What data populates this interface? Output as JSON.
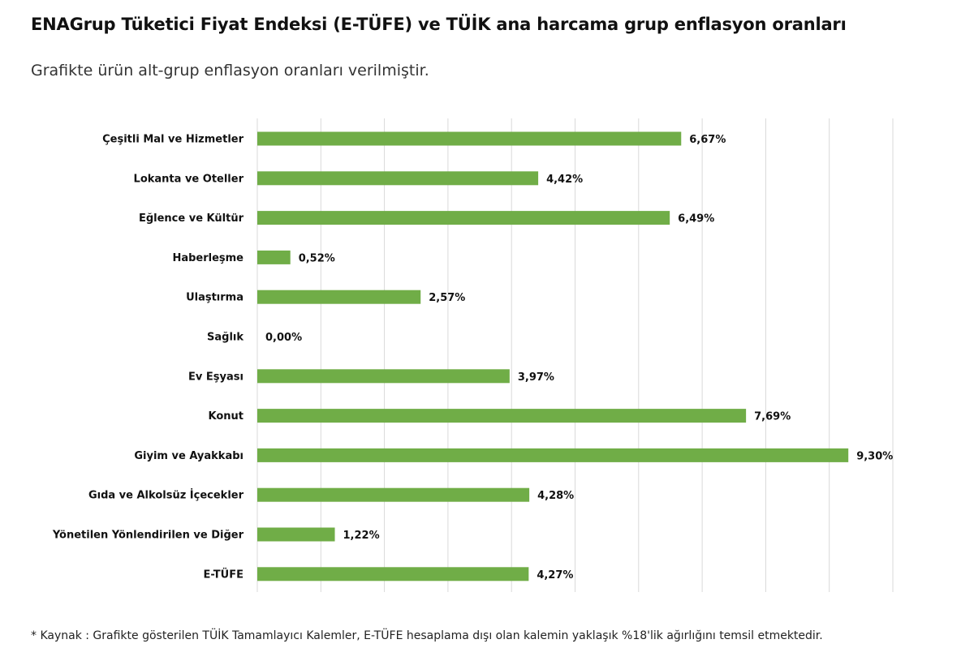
{
  "page": {
    "title": "ENAGrup Tüketici Fiyat Endeksi (E-TÜFE) ve TÜİK ana harcama grup enflasyon oranları",
    "subtitle": "Grafikte ürün alt-grup enflasyon oranları verilmiştir.",
    "footnote": "*  Kaynak : Grafikte gösterilen TÜİK Tamamlayıcı Kalemler, E-TÜFE hesaplama dışı olan kalemin yaklaşık %18'lik ağırlığını temsil etmektedir."
  },
  "colors": {
    "bar": "#70ad47",
    "grid": "#d9d9d9"
  },
  "chart_data": {
    "type": "bar",
    "orientation": "horizontal",
    "categories": [
      "Çeşitli Mal ve Hizmetler",
      "Lokanta ve Oteller",
      "Eğlence ve Kültür",
      "Haberleşme",
      "Ulaştırma",
      "Sağlık",
      "Ev Eşyası",
      "Konut",
      "Giyim ve Ayakkabı",
      "Gıda ve Alkolsüz İçecekler",
      "Yönetilen Yönlendirilen ve Diğer",
      "E-TÜFE"
    ],
    "values": [
      6.67,
      4.42,
      6.49,
      0.52,
      2.57,
      0.0,
      3.97,
      7.69,
      9.3,
      4.28,
      1.22,
      4.27
    ],
    "value_labels": [
      "6,67%",
      "4,42%",
      "6,49%",
      "0,52%",
      "2,57%",
      "0,00%",
      "3,97%",
      "7,69%",
      "9,30%",
      "4,28%",
      "1,22%",
      "4,27%"
    ],
    "xlim": [
      0,
      10
    ],
    "grid": true,
    "legend": false
  }
}
